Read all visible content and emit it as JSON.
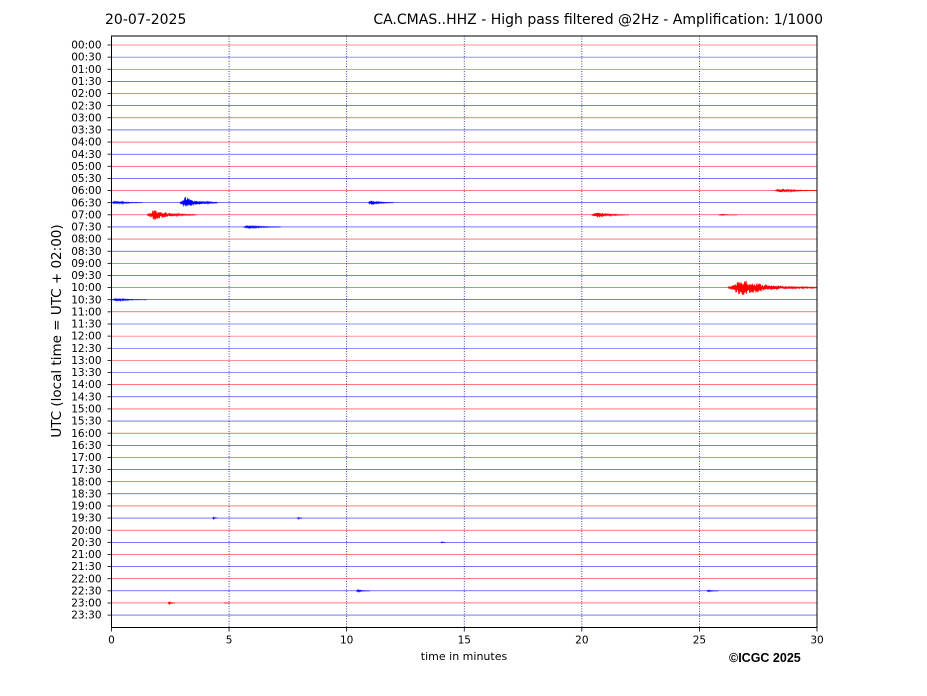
{
  "header": {
    "date": "20-07-2025",
    "title": "CA.CMAS..HHZ - High pass filtered @2Hz - Amplification: 1/1000"
  },
  "footer": {
    "copyright": "©ICGC 2025"
  },
  "colors": {
    "even_row": "#ff0000",
    "odd_row": "#0000ff",
    "grid": "#1a1a80",
    "frame": "#000000"
  },
  "chart_data": {
    "type": "line",
    "title": "CA.CMAS..HHZ - High pass filtered @2Hz - Amplification: 1/1000",
    "xlabel": "time in minutes",
    "ylabel": "UTC (local time = UTC + 02:00)",
    "xlim": [
      0,
      30
    ],
    "xticks": [
      0,
      5,
      10,
      15,
      20,
      25,
      30
    ],
    "vertical_grid_minutes": [
      5,
      10,
      15,
      20,
      25
    ],
    "rows": [
      "00:00",
      "00:30",
      "01:00",
      "01:30",
      "02:00",
      "02:30",
      "03:00",
      "03:30",
      "04:00",
      "04:30",
      "05:00",
      "05:30",
      "06:00",
      "06:30",
      "07:00",
      "07:30",
      "08:00",
      "08:30",
      "09:00",
      "09:30",
      "10:00",
      "10:30",
      "11:00",
      "11:30",
      "12:00",
      "12:30",
      "13:00",
      "13:30",
      "14:00",
      "14:30",
      "15:00",
      "15:30",
      "16:00",
      "16:30",
      "17:00",
      "17:30",
      "18:00",
      "18:30",
      "19:00",
      "19:30",
      "20:00",
      "20:30",
      "21:00",
      "21:30",
      "22:00",
      "22:30",
      "23:00",
      "23:30"
    ],
    "row_colors": "alternating red (even index) / blue (odd index)",
    "events": [
      {
        "row": "06:00",
        "start_min": 28.2,
        "end_min": 30.0,
        "amplitude": 0.35
      },
      {
        "row": "06:30",
        "start_min": 0.0,
        "end_min": 1.3,
        "amplitude": 0.3
      },
      {
        "row": "06:30",
        "start_min": 2.9,
        "end_min": 4.5,
        "amplitude": 1.0
      },
      {
        "row": "06:30",
        "start_min": 10.9,
        "end_min": 12.0,
        "amplitude": 0.4
      },
      {
        "row": "07:00",
        "start_min": 1.5,
        "end_min": 3.6,
        "amplitude": 0.9
      },
      {
        "row": "07:00",
        "start_min": 20.4,
        "end_min": 22.0,
        "amplitude": 0.5
      },
      {
        "row": "07:00",
        "start_min": 25.8,
        "end_min": 26.6,
        "amplitude": 0.12
      },
      {
        "row": "07:30",
        "start_min": 5.6,
        "end_min": 7.2,
        "amplitude": 0.3
      },
      {
        "row": "10:00",
        "start_min": 26.2,
        "end_min": 30.0,
        "amplitude": 1.4
      },
      {
        "row": "10:30",
        "start_min": 0.0,
        "end_min": 1.5,
        "amplitude": 0.25
      },
      {
        "row": "19:30",
        "start_min": 4.3,
        "end_min": 4.5,
        "amplitude": 0.2
      },
      {
        "row": "19:30",
        "start_min": 7.9,
        "end_min": 8.1,
        "amplitude": 0.2
      },
      {
        "row": "20:30",
        "start_min": 14.0,
        "end_min": 14.2,
        "amplitude": 0.12
      },
      {
        "row": "22:30",
        "start_min": 10.4,
        "end_min": 11.0,
        "amplitude": 0.2
      },
      {
        "row": "22:30",
        "start_min": 25.3,
        "end_min": 25.8,
        "amplitude": 0.18
      },
      {
        "row": "23:00",
        "start_min": 2.4,
        "end_min": 2.7,
        "amplitude": 0.25
      },
      {
        "row": "23:00",
        "start_min": 4.8,
        "end_min": 5.0,
        "amplitude": 0.1
      }
    ]
  }
}
